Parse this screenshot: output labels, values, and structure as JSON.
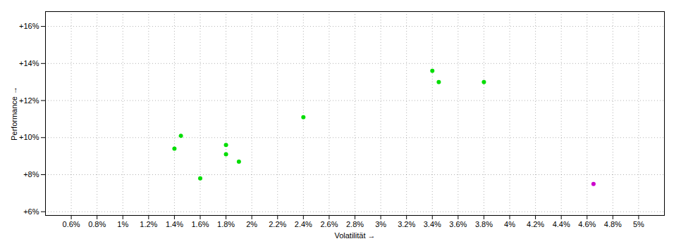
{
  "chart_data": {
    "type": "scatter",
    "xlabel": "Volatilität",
    "ylabel": "Performance",
    "xlim": [
      0.004,
      0.052
    ],
    "ylim": [
      0.058,
      0.168
    ],
    "xticks": [
      {
        "value": 0.006,
        "label": "0.6%"
      },
      {
        "value": 0.008,
        "label": "0.8%"
      },
      {
        "value": 0.01,
        "label": "1%"
      },
      {
        "value": 0.012,
        "label": "1.2%"
      },
      {
        "value": 0.014,
        "label": "1.4%"
      },
      {
        "value": 0.016,
        "label": "1.6%"
      },
      {
        "value": 0.018,
        "label": "1.8%"
      },
      {
        "value": 0.02,
        "label": "2%"
      },
      {
        "value": 0.022,
        "label": "2.2%"
      },
      {
        "value": 0.024,
        "label": "2.4%"
      },
      {
        "value": 0.026,
        "label": "2.6%"
      },
      {
        "value": 0.028,
        "label": "2.8%"
      },
      {
        "value": 0.03,
        "label": "3%"
      },
      {
        "value": 0.032,
        "label": "3.2%"
      },
      {
        "value": 0.034,
        "label": "3.4%"
      },
      {
        "value": 0.036,
        "label": "3.6%"
      },
      {
        "value": 0.038,
        "label": "3.8%"
      },
      {
        "value": 0.04,
        "label": "4%"
      },
      {
        "value": 0.042,
        "label": "4.2%"
      },
      {
        "value": 0.044,
        "label": "4.4%"
      },
      {
        "value": 0.046,
        "label": "4.6%"
      },
      {
        "value": 0.048,
        "label": "4.8%"
      },
      {
        "value": 0.05,
        "label": "5%"
      }
    ],
    "yticks": [
      {
        "value": 0.06,
        "label": "+6%"
      },
      {
        "value": 0.08,
        "label": "+8%"
      },
      {
        "value": 0.1,
        "label": "+10%"
      },
      {
        "value": 0.12,
        "label": "+12%"
      },
      {
        "value": 0.14,
        "label": "+14%"
      },
      {
        "value": 0.16,
        "label": "+16%"
      }
    ],
    "grid": true,
    "series": [
      {
        "color": "#00dd00",
        "x": [
          0.014,
          0.0145,
          0.016,
          0.018,
          0.018,
          0.019,
          0.024,
          0.034,
          0.0345,
          0.038
        ],
        "y": [
          0.094,
          0.101,
          0.078,
          0.096,
          0.091,
          0.087,
          0.111,
          0.136,
          0.13,
          0.13
        ]
      },
      {
        "color": "#cc00cc",
        "x": [
          0.0465
        ],
        "y": [
          0.075
        ]
      }
    ]
  }
}
